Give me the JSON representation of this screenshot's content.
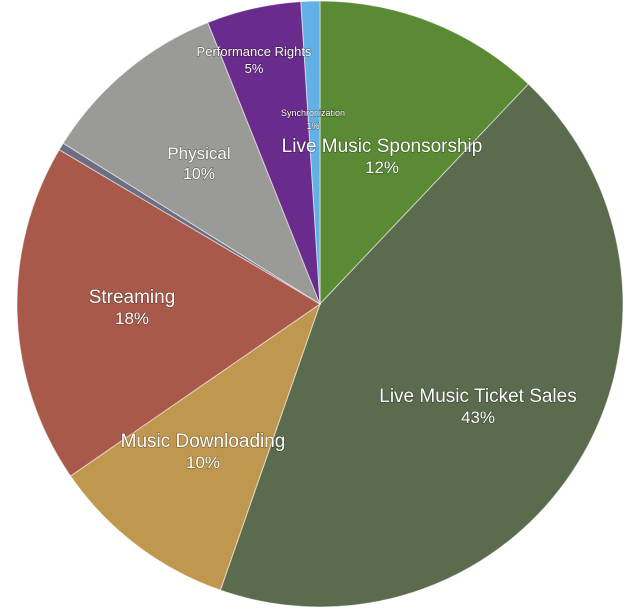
{
  "chart_data": {
    "type": "pie",
    "start_angle_deg": 0,
    "direction": "clockwise",
    "slices": [
      {
        "label": "Live Music Sponsorship",
        "value": 12,
        "value_label": "12%",
        "color": "#5a8a34"
      },
      {
        "label": "Live Music Ticket Sales",
        "value": 43,
        "value_label": "43%",
        "color": "#5b6b4e"
      },
      {
        "label": "Music Downloading",
        "value": 10,
        "value_label": "10%",
        "color": "#c0974f"
      },
      {
        "label": "Streaming",
        "value": 18,
        "value_label": "18%",
        "color": "#a9594a"
      },
      {
        "label": "",
        "value": 0.4,
        "value_label": "",
        "color": "#6b6e85"
      },
      {
        "label": "Physical",
        "value": 10,
        "value_label": "10%",
        "color": "#9a9a97"
      },
      {
        "label": "Performance Rights",
        "value": 5,
        "value_label": "5%",
        "color": "#6a2c8c"
      },
      {
        "label": "Synchronization",
        "value": 1,
        "value_label": "1%",
        "color": "#62b0e6"
      }
    ]
  }
}
